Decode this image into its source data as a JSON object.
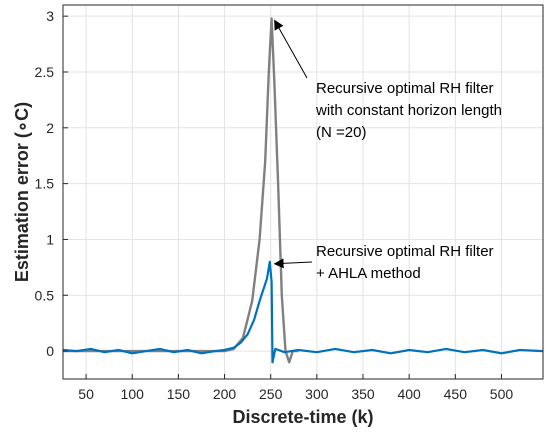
{
  "chart_data": {
    "type": "line",
    "title": "",
    "xlabel": "Discrete-time (k)",
    "ylabel": "Estimation error (∘C)",
    "xlim": [
      25,
      545
    ],
    "ylim": [
      -0.25,
      3.1
    ],
    "xticks": [
      50,
      100,
      150,
      200,
      250,
      300,
      350,
      400,
      450,
      500
    ],
    "yticks": [
      0,
      0.5,
      1,
      1.5,
      2,
      2.5,
      3
    ],
    "xtick_labels": [
      "50",
      "100",
      "150",
      "200",
      "250",
      "300",
      "350",
      "400",
      "450",
      "500"
    ],
    "ytick_labels": [
      "0",
      "0.5",
      "1",
      "1.5",
      "2",
      "2.5",
      "3"
    ],
    "grid": true,
    "series": [
      {
        "color": "#808080",
        "points": [
          [
            25,
            0
          ],
          [
            200,
            0
          ],
          [
            210,
            0.02
          ],
          [
            220,
            0.12
          ],
          [
            230,
            0.45
          ],
          [
            238,
            1.0
          ],
          [
            244,
            1.7
          ],
          [
            248,
            2.5
          ],
          [
            251,
            2.98
          ],
          [
            254,
            2.4
          ],
          [
            258,
            1.5
          ],
          [
            262,
            0.5
          ],
          [
            266,
            0.0
          ],
          [
            270,
            -0.1
          ],
          [
            274,
            0.0
          ],
          [
            280,
            0.0
          ]
        ]
      },
      {
        "color": "#0072BD",
        "points": [
          [
            25,
            0.01
          ],
          [
            40,
            0.0
          ],
          [
            55,
            0.02
          ],
          [
            70,
            -0.01
          ],
          [
            85,
            0.01
          ],
          [
            100,
            -0.02
          ],
          [
            115,
            0.0
          ],
          [
            130,
            0.02
          ],
          [
            145,
            -0.01
          ],
          [
            160,
            0.01
          ],
          [
            175,
            -0.02
          ],
          [
            190,
            0.0
          ],
          [
            200,
            0.01
          ],
          [
            210,
            0.03
          ],
          [
            218,
            0.08
          ],
          [
            225,
            0.15
          ],
          [
            232,
            0.28
          ],
          [
            238,
            0.45
          ],
          [
            242,
            0.55
          ],
          [
            246,
            0.65
          ],
          [
            249,
            0.8
          ],
          [
            251,
            0.62
          ],
          [
            252,
            -0.1
          ],
          [
            255,
            0.02
          ],
          [
            265,
            -0.01
          ],
          [
            280,
            0.01
          ],
          [
            300,
            -0.01
          ],
          [
            320,
            0.02
          ],
          [
            340,
            -0.01
          ],
          [
            360,
            0.01
          ],
          [
            380,
            -0.02
          ],
          [
            400,
            0.01
          ],
          [
            420,
            -0.01
          ],
          [
            440,
            0.02
          ],
          [
            460,
            -0.01
          ],
          [
            480,
            0.01
          ],
          [
            500,
            -0.02
          ],
          [
            520,
            0.01
          ],
          [
            545,
            0.0
          ]
        ]
      }
    ],
    "annotations": [
      {
        "lines": [
          "Recursive optimal RH filter",
          "with constant  horizon length",
          "(N =20)"
        ],
        "arrow_to": [
          251,
          2.98
        ]
      },
      {
        "lines": [
          "Recursive optimal RH filter",
          "+ AHLA method"
        ],
        "arrow_to": [
          251,
          0.8
        ]
      }
    ]
  }
}
